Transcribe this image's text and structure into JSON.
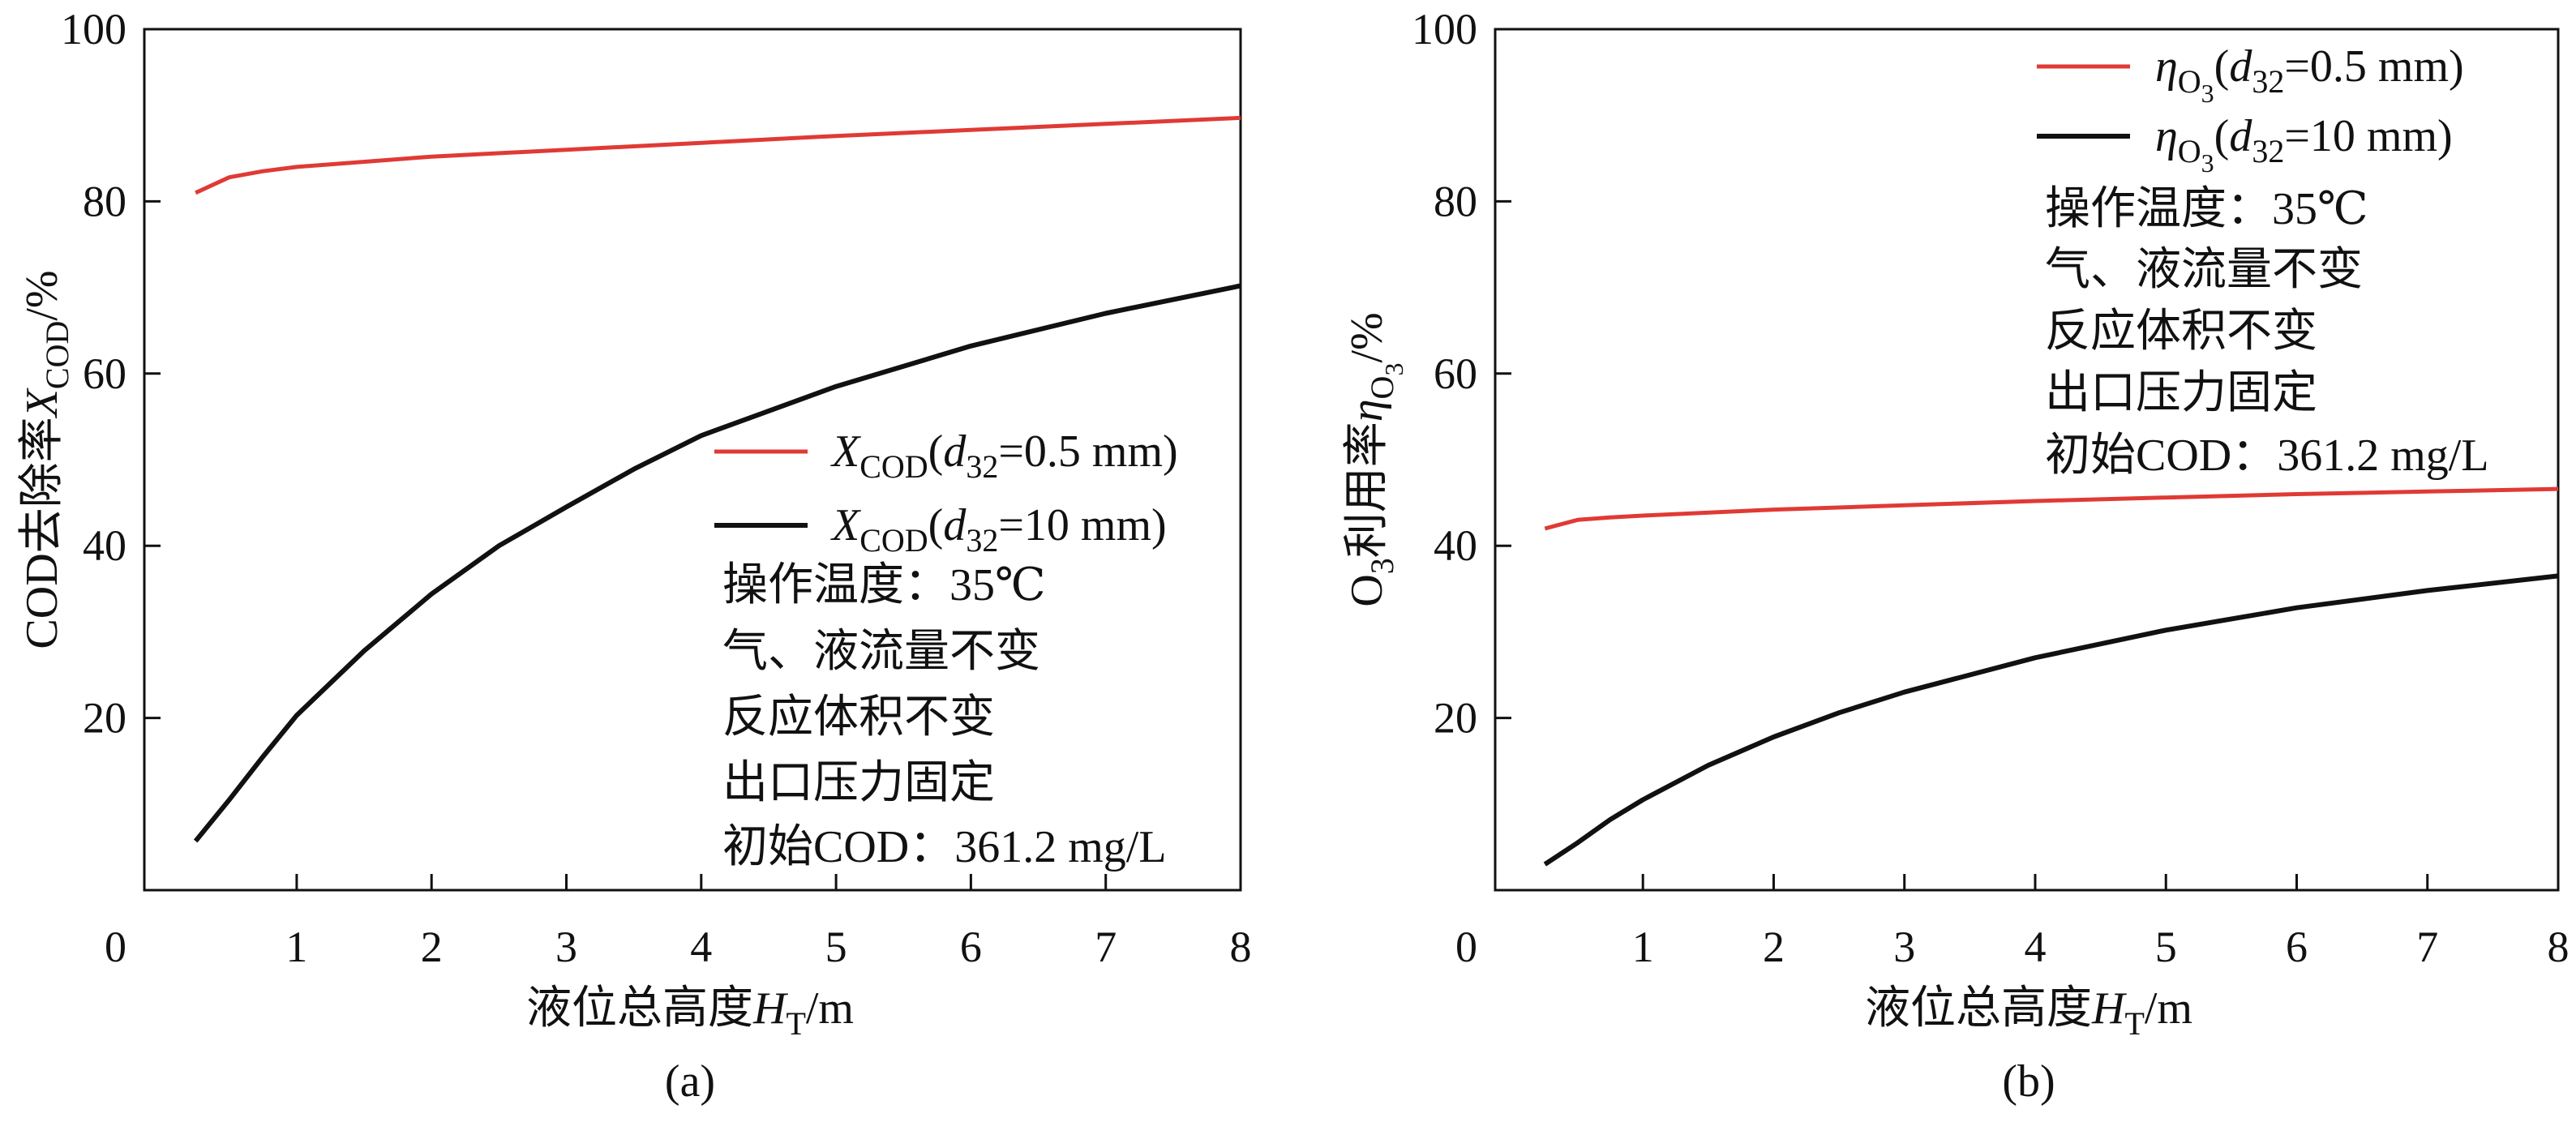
{
  "chart_data": [
    {
      "type": "line",
      "panel_label": "(a)",
      "xlabel": {
        "main": "液位总高度",
        "var": "H",
        "sub": "T",
        "unit": "/m"
      },
      "ylabel": {
        "main": "COD去除率",
        "var": "X",
        "sub": "COD",
        "unit": "/%"
      },
      "xlim": [
        -0.13,
        8
      ],
      "ylim": [
        0,
        100
      ],
      "xticks": [
        1,
        2,
        3,
        4,
        5,
        6,
        7,
        8
      ],
      "yticks": [
        20,
        40,
        60,
        80,
        100
      ],
      "origin_label": "0",
      "grid": false,
      "legend_position": "center-right",
      "series": [
        {
          "name": "XCOD(d32=0.5 mm)",
          "legend": {
            "var": "X",
            "sub": "COD",
            "open": "(",
            "dvar": "d",
            "dsub": "32",
            "rest": "=0.5 mm)"
          },
          "color": "#e03a35",
          "x": [
            0.25,
            0.5,
            0.75,
            1,
            2,
            3,
            4,
            5,
            6,
            7,
            8
          ],
          "y": [
            81.0,
            82.8,
            83.5,
            84.0,
            85.2,
            86.0,
            86.8,
            87.6,
            88.3,
            89.0,
            89.7
          ]
        },
        {
          "name": "XCOD(d32=10 mm)",
          "legend": {
            "var": "X",
            "sub": "COD",
            "open": "(",
            "dvar": "d",
            "dsub": "32",
            "rest": "=10 mm)"
          },
          "color": "#111111",
          "x": [
            0.25,
            0.5,
            0.75,
            1,
            1.5,
            2,
            2.5,
            3,
            3.5,
            4,
            5,
            6,
            7,
            8
          ],
          "y": [
            5.7,
            10.5,
            15.5,
            20.3,
            27.8,
            34.4,
            40.0,
            44.5,
            48.9,
            52.8,
            58.5,
            63.2,
            67.0,
            70.2
          ]
        }
      ],
      "annotations": [
        "操作温度：35℃",
        "气、液流量不变",
        "反应体积不变",
        "出口压力固定",
        "初始COD：361.2 mg/L"
      ]
    },
    {
      "type": "line",
      "panel_label": "(b)",
      "xlabel": {
        "main": "液位总高度",
        "var": "H",
        "sub": "T",
        "unit": "/m"
      },
      "ylabel": {
        "pre": "O",
        "presub": "3",
        "main": "利用率",
        "var": "η",
        "sub": "O",
        "subsub": "3",
        "unit": "/%"
      },
      "xlim": [
        -0.13,
        8
      ],
      "ylim": [
        0,
        100
      ],
      "xticks": [
        1,
        2,
        3,
        4,
        5,
        6,
        7,
        8
      ],
      "yticks": [
        20,
        40,
        60,
        80,
        100
      ],
      "origin_label": "0",
      "grid": false,
      "legend_position": "top-right",
      "series": [
        {
          "name": "ηO3(d32=0.5 mm)",
          "legend": {
            "var": "η",
            "sub": "O",
            "subsub": "3",
            "open": "(",
            "dvar": "d",
            "dsub": "32",
            "rest": "=0.5 mm)"
          },
          "color": "#e03a35",
          "x": [
            0.25,
            0.5,
            0.75,
            1,
            2,
            3,
            4,
            5,
            6,
            7,
            8
          ],
          "y": [
            42.0,
            43.0,
            43.3,
            43.5,
            44.2,
            44.7,
            45.2,
            45.6,
            46.0,
            46.3,
            46.6
          ]
        },
        {
          "name": "ηO3(d32=10 mm)",
          "legend": {
            "var": "η",
            "sub": "O",
            "subsub": "3",
            "open": "(",
            "dvar": "d",
            "dsub": "32",
            "rest": "=10 mm)"
          },
          "color": "#111111",
          "x": [
            0.25,
            0.5,
            0.75,
            1,
            1.5,
            2,
            2.5,
            3,
            4,
            5,
            6,
            7,
            8
          ],
          "y": [
            3.0,
            5.5,
            8.2,
            10.5,
            14.5,
            17.8,
            20.6,
            23.0,
            27.0,
            30.2,
            32.8,
            34.8,
            36.5
          ]
        }
      ],
      "annotations": [
        "操作温度：35℃",
        "气、液流量不变",
        "反应体积不变",
        "出口压力固定",
        "初始COD：361.2 mg/L"
      ]
    }
  ]
}
